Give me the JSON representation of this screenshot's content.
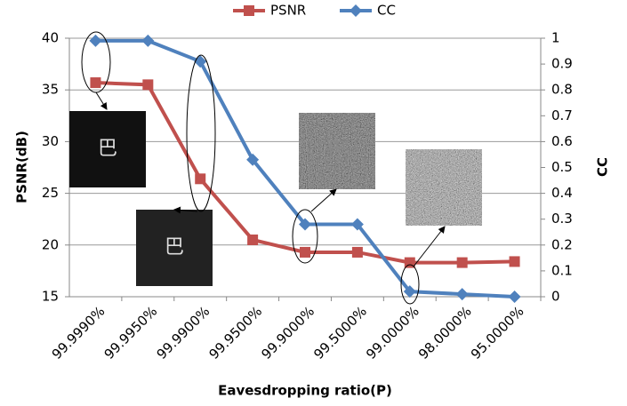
{
  "chart_data": {
    "type": "line",
    "categories": [
      "99.9990%",
      "99.9950%",
      "99.9900%",
      "99.9500%",
      "99.9000%",
      "99.5000%",
      "99.0000%",
      "98.0000%",
      "95.0000%"
    ],
    "series": [
      {
        "name": "PSNR",
        "color": "#c0504d",
        "marker": "square",
        "values": [
          35.7,
          35.5,
          26.4,
          20.5,
          19.3,
          19.3,
          18.3,
          18.3,
          18.4
        ]
      },
      {
        "name": "CC",
        "color": "#4f81bd",
        "marker": "diamond",
        "axis": "y2",
        "values": [
          0.99,
          0.99,
          0.91,
          0.53,
          0.28,
          0.28,
          0.02,
          0.01,
          0.0
        ]
      }
    ],
    "ylabel": "PSNR(dB)",
    "y2label": "CC",
    "xlabel": "Eavesdropping ratio(P)",
    "ylim": [
      15,
      40
    ],
    "yticks": [
      15,
      20,
      25,
      30,
      35,
      40
    ],
    "y2lim": [
      0,
      1
    ],
    "y2ticks": [
      0,
      0.1,
      0.2,
      0.3,
      0.4,
      0.5,
      0.6,
      0.7,
      0.8,
      0.9,
      1
    ],
    "grid": true,
    "legend": "top",
    "image_glyph": "巴"
  }
}
